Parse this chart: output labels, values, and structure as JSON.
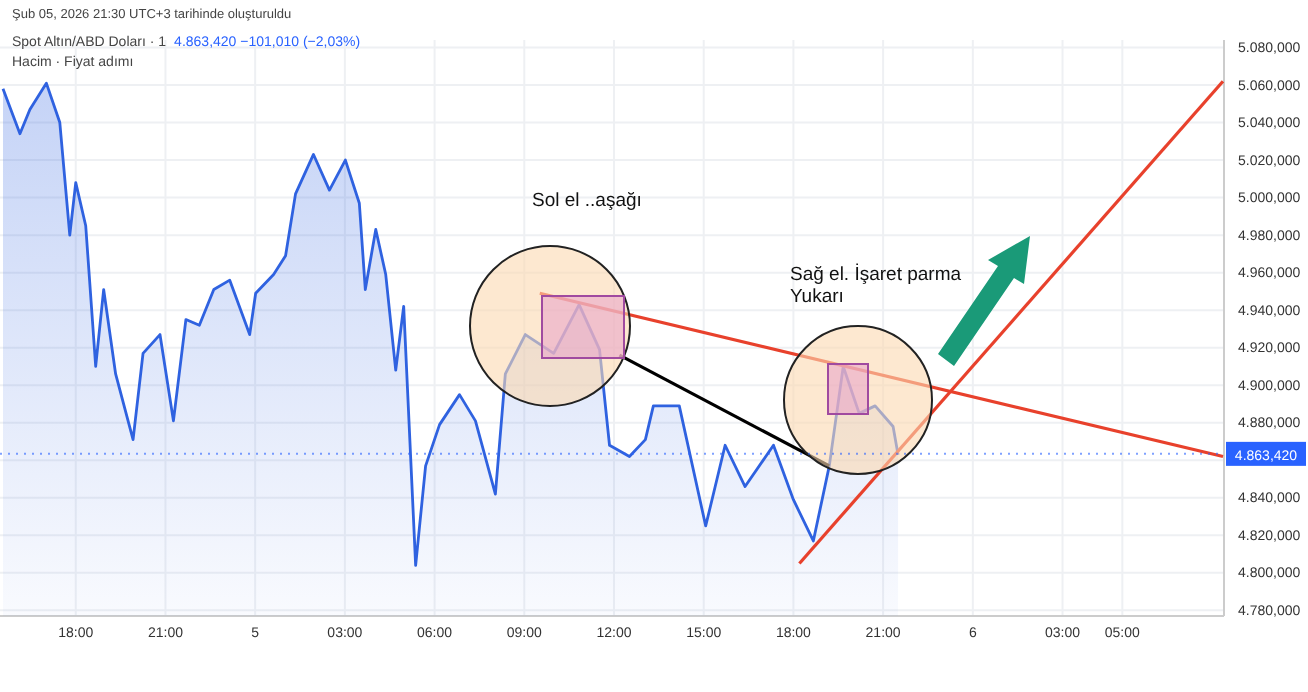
{
  "chart_data": {
    "type": "area",
    "title": "Spot Altın/ABD Doları · 1",
    "subtitle": "Hacim · Fiyat adımı",
    "annotations": [
      "Şub 05, 2026 21:30 UTC+3 tarihinde oluşturuldu",
      "4.863,420 −101,010 (−2,03%)",
      "Sol el ..aşağı",
      "Sağ el. İşaret parma\nYukarı"
    ],
    "xlim": [
      "2026-02-04T15:28",
      "2026-02-06T08:24"
    ],
    "ylim": [
      4777,
      5084
    ],
    "xticks": [
      {
        "value": "2026-02-04T18:00",
        "label": "18:00"
      },
      {
        "value": "2026-02-04T21:00",
        "label": "21:00"
      },
      {
        "value": "2026-02-05T00:00",
        "label": "5"
      },
      {
        "value": "2026-02-05T03:00",
        "label": "03:00"
      },
      {
        "value": "2026-02-05T06:00",
        "label": "06:00"
      },
      {
        "value": "2026-02-05T09:00",
        "label": "09:00"
      },
      {
        "value": "2026-02-05T12:00",
        "label": "12:00"
      },
      {
        "value": "2026-02-05T15:00",
        "label": "15:00"
      },
      {
        "value": "2026-02-05T18:00",
        "label": "18:00"
      },
      {
        "value": "2026-02-05T21:00",
        "label": "21:00"
      },
      {
        "value": "2026-02-06T00:00",
        "label": "6"
      },
      {
        "value": "2026-02-06T03:00",
        "label": "03:00"
      },
      {
        "value": "2026-02-06T05:00",
        "label": "05:00"
      }
    ],
    "yticks": [
      {
        "value": 5080,
        "label": "5.080,000"
      },
      {
        "value": 5060,
        "label": "5.060,000"
      },
      {
        "value": 5040,
        "label": "5.040,000"
      },
      {
        "value": 5020,
        "label": "5.020,000"
      },
      {
        "value": 5000,
        "label": "5.000,000"
      },
      {
        "value": 4980,
        "label": "4.980,000"
      },
      {
        "value": 4960,
        "label": "4.960,000"
      },
      {
        "value": 4940,
        "label": "4.940,000"
      },
      {
        "value": 4920,
        "label": "4.920,000"
      },
      {
        "value": 4900,
        "label": "4.900,000"
      },
      {
        "value": 4880,
        "label": "4.880,000"
      },
      {
        "value": 4860,
        "label": null
      },
      {
        "value": 4840,
        "label": "4.840,000"
      },
      {
        "value": 4820,
        "label": "4.820,000"
      },
      {
        "value": 4800,
        "label": "4.800,000"
      },
      {
        "value": 4780,
        "label": "4.780,000"
      }
    ],
    "grid": true,
    "ref_lines": [
      {
        "axis": "y",
        "value": 4863.42,
        "label": "4.863,420",
        "color": "#2962ff",
        "line_style": "dotted"
      }
    ],
    "series": [
      {
        "type": "area",
        "color": "#2f62e0",
        "x": [
          "2026-02-04T15:34",
          "2026-02-04T16:08",
          "2026-02-04T16:28",
          "2026-02-04T17:01",
          "2026-02-04T17:28",
          "2026-02-04T17:48",
          "2026-02-04T18:00",
          "2026-02-04T18:20",
          "2026-02-04T18:40",
          "2026-02-04T18:56",
          "2026-02-04T19:20",
          "2026-02-04T19:55",
          "2026-02-04T20:15",
          "2026-02-04T20:49",
          "2026-02-04T21:16",
          "2026-02-04T21:41",
          "2026-02-04T22:08",
          "2026-02-04T22:37",
          "2026-02-04T23:09",
          "2026-02-04T23:49",
          "2026-02-05T00:01",
          "2026-02-05T00:37",
          "2026-02-05T01:01",
          "2026-02-05T01:21",
          "2026-02-05T01:57",
          "2026-02-05T02:29",
          "2026-02-05T03:01",
          "2026-02-05T03:29",
          "2026-02-05T03:41",
          "2026-02-05T04:02",
          "2026-02-05T04:22",
          "2026-02-05T04:42",
          "2026-02-05T04:58",
          "2026-02-05T05:22",
          "2026-02-05T05:42",
          "2026-02-05T06:10",
          "2026-02-05T06:50",
          "2026-02-05T07:22",
          "2026-02-05T08:02",
          "2026-02-05T08:22",
          "2026-02-05T09:02",
          "2026-02-05T09:59",
          "2026-02-05T10:50",
          "2026-02-05T11:31",
          "2026-02-05T11:51",
          "2026-02-05T12:31",
          "2026-02-05T13:03",
          "2026-02-05T13:19",
          "2026-02-05T14:11",
          "2026-02-05T15:04",
          "2026-02-05T15:43",
          "2026-02-05T16:23",
          "2026-02-05T17:20",
          "2026-02-05T18:00",
          "2026-02-05T18:40",
          "2026-02-05T19:12",
          "2026-02-05T19:40",
          "2026-02-05T20:12",
          "2026-02-05T20:44",
          "2026-02-05T21:20",
          "2026-02-05T21:30"
        ],
        "values": [
          5058,
          5034,
          5047,
          5061,
          5040,
          4980,
          5008,
          4985,
          4910,
          4951,
          4906,
          4871,
          4917,
          4927,
          4881,
          4935,
          4932,
          4951,
          4956,
          4927,
          4949,
          4959,
          4969,
          5002,
          5023,
          5004,
          5020,
          4997,
          4951,
          4983,
          4959,
          4908,
          4942,
          4804,
          4857,
          4879,
          4895,
          4881,
          4842,
          4906,
          4927,
          4917,
          4943,
          4919,
          4868,
          4862,
          4871,
          4889,
          4889,
          4825,
          4868,
          4846,
          4868,
          4839,
          4817,
          4857,
          4910,
          4885,
          4889,
          4878,
          4863
        ]
      },
      {
        "type": "line",
        "color": "#e8412c",
        "x": [
          "2026-02-05T09:31",
          "2026-02-06T08:22"
        ],
        "values": [
          4949,
          4862
        ]
      },
      {
        "type": "line",
        "color": "#e8412c",
        "x": [
          "2026-02-05T18:12",
          "2026-02-06T08:22"
        ],
        "values": [
          4805,
          5062
        ]
      },
      {
        "type": "line",
        "color": "#000000",
        "x": [
          "2026-02-05T12:11",
          "2026-02-05T19:12"
        ],
        "values": [
          4916,
          4857
        ]
      }
    ]
  }
}
